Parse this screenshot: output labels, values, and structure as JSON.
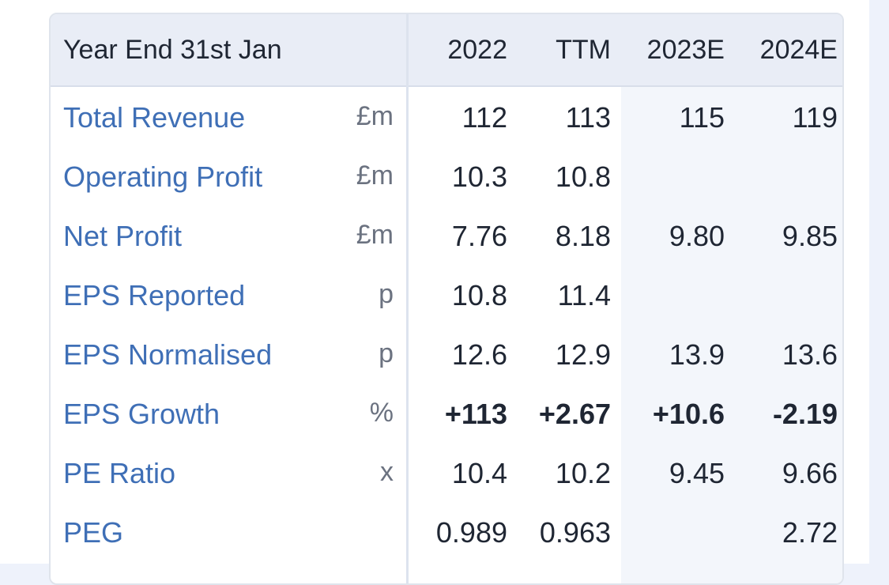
{
  "header": {
    "title": "Year End 31st Jan",
    "columns": [
      "2022",
      "TTM",
      "2023E",
      "2024E"
    ]
  },
  "rows": [
    {
      "label": "Total Revenue",
      "unit": "£m",
      "values": [
        "112",
        "113",
        "115",
        "119"
      ]
    },
    {
      "label": "Operating Profit",
      "unit": "£m",
      "values": [
        "10.3",
        "10.8",
        "",
        ""
      ]
    },
    {
      "label": "Net Profit",
      "unit": "£m",
      "values": [
        "7.76",
        "8.18",
        "9.80",
        "9.85"
      ]
    },
    {
      "label": "EPS Reported",
      "unit": "p",
      "values": [
        "10.8",
        "11.4",
        "",
        ""
      ]
    },
    {
      "label": "EPS Normalised",
      "unit": "p",
      "values": [
        "12.6",
        "12.9",
        "13.9",
        "13.6"
      ]
    },
    {
      "label": "EPS Growth",
      "unit": "%",
      "values": [
        "+113",
        "+2.67",
        "+10.6",
        "-2.19"
      ]
    },
    {
      "label": "PE Ratio",
      "unit": "x",
      "values": [
        "10.4",
        "10.2",
        "9.45",
        "9.66"
      ]
    },
    {
      "label": "PEG",
      "unit": "",
      "values": [
        "0.989",
        "0.963",
        "",
        "2.72"
      ]
    }
  ],
  "colors": {
    "label": "#3f6fb6",
    "positive": "#2e8b3e",
    "negative": "#c6393f",
    "header_bg": "#e9edf6"
  }
}
